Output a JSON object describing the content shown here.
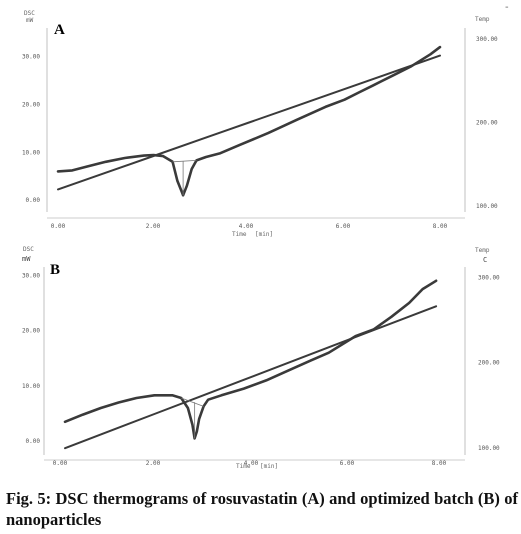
{
  "corner_mark": "-",
  "caption": "Fig. 5: DSC thermograms of rosuvastatin (A) and optimized batch (B) of nanoparticles",
  "chart_data": [
    {
      "type": "line",
      "panel_label": "A",
      "left_axis_labels": [
        "DSC",
        "mW"
      ],
      "right_axis_label": "Temp",
      "bottom_axis_label": "Time",
      "bottom_axis_unit": "[min]",
      "x_tick_labels": [
        "0.00",
        "2.00",
        "4.00",
        "6.00",
        "8.00"
      ],
      "y_left_tick_labels": [
        "0.00",
        "10.00",
        "20.00",
        "30.00"
      ],
      "y_right_tick_labels": [
        "100.00",
        "200.00",
        "300.00"
      ],
      "x_range": [
        0,
        8
      ],
      "y_left_range": [
        -2.5,
        36
      ],
      "y_right_range": [
        93,
        313
      ],
      "series": [
        {
          "role": "DSC heat flow (mW)",
          "axis": "left",
          "x": [
            0.0,
            0.3,
            0.6,
            1.0,
            1.4,
            1.8,
            2.0,
            2.2,
            2.4,
            2.5,
            2.6,
            2.62,
            2.7,
            2.8,
            2.9,
            3.1,
            3.4,
            3.8,
            4.4,
            5.0,
            5.6,
            6.0,
            6.3,
            6.6,
            7.0,
            7.4,
            7.8,
            8.0
          ],
          "y": [
            6.0,
            6.2,
            7.0,
            8.0,
            8.8,
            9.3,
            9.4,
            9.2,
            8.0,
            4.0,
            1.5,
            1.0,
            3.0,
            6.5,
            8.3,
            9.0,
            9.8,
            11.5,
            14.0,
            16.8,
            19.5,
            21.0,
            22.5,
            24.0,
            26.0,
            28.0,
            30.5,
            32.0
          ]
        },
        {
          "role": "Temperature (°C)",
          "axis": "right",
          "x": [
            0.0,
            1.0,
            2.0,
            3.0,
            4.0,
            5.0,
            6.0,
            7.0,
            8.0
          ],
          "y": [
            120,
            140,
            160,
            180,
            200,
            220,
            240,
            260,
            280
          ]
        }
      ]
    },
    {
      "type": "line",
      "panel_label": "B",
      "left_axis_labels": [
        "DSC",
        "mW"
      ],
      "right_axis_label": "Temp",
      "right_axis_unit": "C",
      "bottom_axis_label": "Time",
      "bottom_axis_unit": "[min]",
      "x_tick_labels": [
        "0.00",
        "2.00",
        "4.00",
        "6.00",
        "8.00"
      ],
      "y_left_tick_labels": [
        "0.00",
        "10.00",
        "20.00",
        "30.00"
      ],
      "y_right_tick_labels": [
        "100.00",
        "200.00",
        "300.00"
      ],
      "x_range": [
        0,
        8.5
      ],
      "y_left_range": [
        -2.5,
        31.5
      ],
      "y_right_range": [
        92,
        312
      ],
      "series": [
        {
          "role": "DSC heat flow (mW)",
          "axis": "left",
          "x": [
            0.0,
            0.4,
            0.8,
            1.2,
            1.6,
            2.0,
            2.4,
            2.6,
            2.75,
            2.85,
            2.9,
            2.95,
            3.0,
            3.1,
            3.2,
            3.5,
            4.0,
            4.5,
            5.0,
            5.5,
            5.9,
            6.2,
            6.5,
            6.9,
            7.3,
            7.7,
            8.0,
            8.3
          ],
          "y": [
            3.5,
            4.8,
            6.0,
            7.0,
            7.8,
            8.3,
            8.3,
            7.8,
            6.0,
            3.0,
            0.5,
            1.8,
            4.0,
            6.3,
            7.5,
            8.3,
            9.5,
            11.0,
            12.8,
            14.6,
            16.0,
            17.5,
            19.0,
            20.2,
            22.5,
            25.0,
            27.5,
            29.0
          ]
        },
        {
          "role": "Temperature (°C)",
          "axis": "right",
          "x": [
            0.0,
            1.0,
            2.0,
            3.0,
            4.0,
            5.0,
            6.0,
            7.0,
            8.0,
            8.3
          ],
          "y": [
            100,
            120,
            140,
            160,
            180,
            200,
            220,
            240,
            260,
            266
          ]
        }
      ]
    }
  ]
}
